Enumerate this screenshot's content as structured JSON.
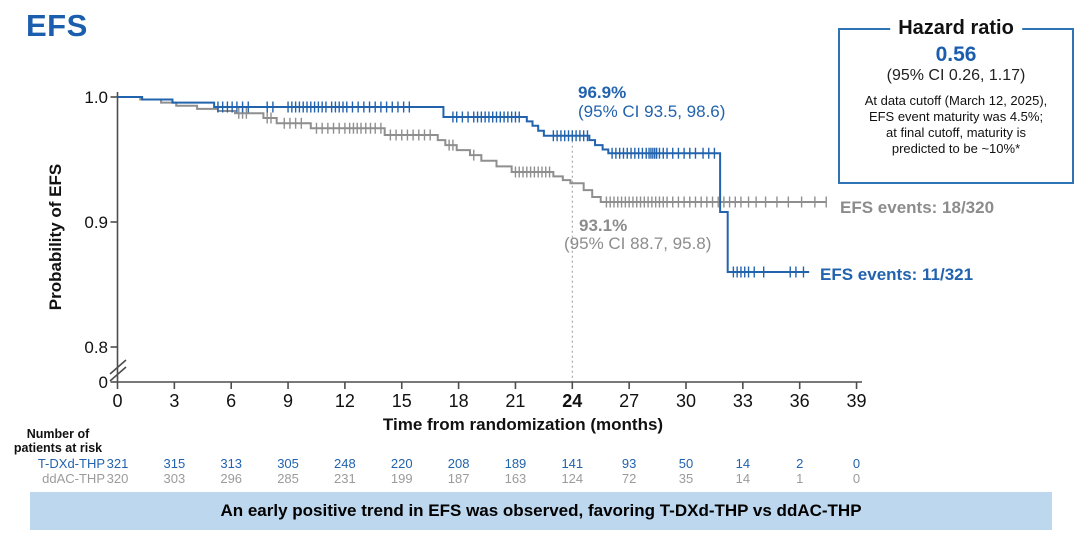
{
  "title": "EFS",
  "colors": {
    "brand_blue": "#1B5EAD",
    "curve_blue": "#2263AE",
    "curve_gray": "#8F8F8F",
    "risk_gray": "#9B9B9B",
    "banner_bg": "#BDD7EE",
    "box_border": "#2E74B5"
  },
  "hazard_box": {
    "title": "Hazard ratio",
    "value": "0.56",
    "ci": "(95% CI 0.26, 1.17)",
    "note_lines": [
      "At data cutoff (March 12, 2025),",
      "EFS event maturity was 4.5%;",
      "at final cutoff, maturity is",
      "predicted to be ~10%*"
    ]
  },
  "banner": {
    "text": "An early positive trend in EFS was observed, favoring T-DXd-THP vs ddAC-THP"
  },
  "chart_data": {
    "type": "line",
    "subtype": "kaplan-meier-step",
    "title": "EFS",
    "xlabel": "Time from randomization (months)",
    "ylabel": "Probability of EFS",
    "x_ticks": [
      0,
      3,
      6,
      9,
      12,
      15,
      18,
      21,
      24,
      27,
      30,
      33,
      36,
      39
    ],
    "emphasized_x_tick": 24,
    "y_ticks": [
      "1.0",
      "0.9",
      "0.8",
      "0"
    ],
    "ylim_visible": [
      0.8,
      1.0
    ],
    "axis_break": true,
    "reference_line_month": 24,
    "series": [
      {
        "name": "T-DXd-THP",
        "color": "#2263AE",
        "steps": [
          [
            0,
            1.0
          ],
          [
            1.3,
            0.998
          ],
          [
            2.9,
            0.9955
          ],
          [
            5.1,
            0.992
          ],
          [
            17.2,
            0.984
          ],
          [
            21.6,
            0.9805
          ],
          [
            21.9,
            0.977
          ],
          [
            22.2,
            0.973
          ],
          [
            22.5,
            0.969
          ],
          [
            24.9,
            0.9655
          ],
          [
            25.2,
            0.9615
          ],
          [
            25.6,
            0.958
          ],
          [
            25.9,
            0.955
          ],
          [
            31.8,
            0.908
          ],
          [
            32.2,
            0.86
          ],
          [
            36.5,
            0.86
          ]
        ],
        "censors": [
          [
            5.3,
            0.992
          ],
          [
            5.55,
            0.992
          ],
          [
            5.8,
            0.992
          ],
          [
            6.05,
            0.992
          ],
          [
            6.3,
            0.992
          ],
          [
            6.6,
            0.992
          ],
          [
            6.9,
            0.992
          ],
          [
            7.9,
            0.992
          ],
          [
            8.2,
            0.992
          ],
          [
            9.0,
            0.992
          ],
          [
            9.2,
            0.992
          ],
          [
            9.4,
            0.992
          ],
          [
            9.6,
            0.992
          ],
          [
            9.8,
            0.992
          ],
          [
            10.0,
            0.992
          ],
          [
            10.2,
            0.992
          ],
          [
            10.4,
            0.992
          ],
          [
            10.6,
            0.992
          ],
          [
            10.8,
            0.992
          ],
          [
            11.0,
            0.992
          ],
          [
            11.3,
            0.992
          ],
          [
            11.5,
            0.992
          ],
          [
            11.7,
            0.992
          ],
          [
            11.9,
            0.992
          ],
          [
            12.1,
            0.992
          ],
          [
            12.4,
            0.992
          ],
          [
            12.7,
            0.992
          ],
          [
            13.0,
            0.992
          ],
          [
            13.3,
            0.992
          ],
          [
            13.6,
            0.992
          ],
          [
            13.9,
            0.992
          ],
          [
            14.2,
            0.992
          ],
          [
            14.5,
            0.992
          ],
          [
            14.8,
            0.992
          ],
          [
            15.1,
            0.992
          ],
          [
            15.4,
            0.992
          ],
          [
            17.7,
            0.984
          ],
          [
            17.9,
            0.984
          ],
          [
            18.2,
            0.984
          ],
          [
            18.5,
            0.984
          ],
          [
            18.8,
            0.984
          ],
          [
            19.0,
            0.984
          ],
          [
            19.2,
            0.984
          ],
          [
            19.4,
            0.984
          ],
          [
            19.6,
            0.984
          ],
          [
            19.8,
            0.984
          ],
          [
            20.0,
            0.984
          ],
          [
            20.2,
            0.984
          ],
          [
            20.4,
            0.984
          ],
          [
            20.6,
            0.984
          ],
          [
            20.8,
            0.984
          ],
          [
            21.0,
            0.984
          ],
          [
            21.2,
            0.984
          ],
          [
            23.0,
            0.969
          ],
          [
            23.2,
            0.969
          ],
          [
            23.4,
            0.969
          ],
          [
            23.6,
            0.969
          ],
          [
            23.8,
            0.969
          ],
          [
            24.0,
            0.969
          ],
          [
            24.2,
            0.969
          ],
          [
            24.4,
            0.969
          ],
          [
            24.6,
            0.969
          ],
          [
            24.8,
            0.969
          ],
          [
            26.1,
            0.955
          ],
          [
            26.3,
            0.955
          ],
          [
            26.5,
            0.955
          ],
          [
            26.7,
            0.955
          ],
          [
            26.9,
            0.955
          ],
          [
            27.1,
            0.955
          ],
          [
            27.3,
            0.955
          ],
          [
            27.5,
            0.955
          ],
          [
            27.7,
            0.955
          ],
          [
            27.9,
            0.955
          ],
          [
            28.05,
            0.955
          ],
          [
            28.15,
            0.955
          ],
          [
            28.25,
            0.955
          ],
          [
            28.35,
            0.955
          ],
          [
            28.45,
            0.955
          ],
          [
            28.6,
            0.955
          ],
          [
            28.8,
            0.955
          ],
          [
            29.0,
            0.955
          ],
          [
            29.3,
            0.955
          ],
          [
            29.6,
            0.955
          ],
          [
            29.9,
            0.955
          ],
          [
            30.2,
            0.955
          ],
          [
            30.5,
            0.955
          ],
          [
            30.9,
            0.955
          ],
          [
            31.2,
            0.955
          ],
          [
            31.5,
            0.955
          ],
          [
            32.5,
            0.86
          ],
          [
            32.7,
            0.86
          ],
          [
            32.9,
            0.86
          ],
          [
            33.1,
            0.86
          ],
          [
            33.3,
            0.86
          ],
          [
            33.6,
            0.86
          ],
          [
            34.1,
            0.86
          ],
          [
            35.5,
            0.86
          ],
          [
            35.8,
            0.86
          ],
          [
            36.2,
            0.86
          ]
        ],
        "landmark": {
          "month": 24,
          "value_pct": "96.9%",
          "ci": "(95% CI 93.5, 98.6)"
        },
        "events_label": "EFS events: 11/321"
      },
      {
        "name": "ddAC-THP",
        "color": "#8F8F8F",
        "steps": [
          [
            0,
            1.0
          ],
          [
            1.2,
            0.998
          ],
          [
            2.3,
            0.9955
          ],
          [
            3.1,
            0.993
          ],
          [
            4.2,
            0.9905
          ],
          [
            5.3,
            0.9888
          ],
          [
            6.2,
            0.987
          ],
          [
            7.7,
            0.9832
          ],
          [
            8.4,
            0.979
          ],
          [
            10.2,
            0.975
          ],
          [
            14.1,
            0.9696
          ],
          [
            16.9,
            0.9655
          ],
          [
            17.3,
            0.9615
          ],
          [
            17.9,
            0.9575
          ],
          [
            18.6,
            0.9535
          ],
          [
            19.2,
            0.949
          ],
          [
            20.0,
            0.9445
          ],
          [
            20.8,
            0.94
          ],
          [
            23.0,
            0.9365
          ],
          [
            23.5,
            0.9335
          ],
          [
            23.9,
            0.931
          ],
          [
            24.6,
            0.9255
          ],
          [
            25.05,
            0.92
          ],
          [
            25.5,
            0.916
          ],
          [
            37.4,
            0.916
          ]
        ],
        "censors": [
          [
            6.4,
            0.987
          ],
          [
            6.6,
            0.987
          ],
          [
            6.8,
            0.987
          ],
          [
            7.9,
            0.9832
          ],
          [
            8.1,
            0.9832
          ],
          [
            8.8,
            0.979
          ],
          [
            9.1,
            0.979
          ],
          [
            9.4,
            0.979
          ],
          [
            9.7,
            0.979
          ],
          [
            10.5,
            0.975
          ],
          [
            10.8,
            0.975
          ],
          [
            11.1,
            0.975
          ],
          [
            11.4,
            0.975
          ],
          [
            11.7,
            0.975
          ],
          [
            12.0,
            0.975
          ],
          [
            12.25,
            0.975
          ],
          [
            12.45,
            0.975
          ],
          [
            12.65,
            0.975
          ],
          [
            12.85,
            0.975
          ],
          [
            13.1,
            0.975
          ],
          [
            13.35,
            0.975
          ],
          [
            13.6,
            0.975
          ],
          [
            13.9,
            0.975
          ],
          [
            14.4,
            0.9696
          ],
          [
            14.7,
            0.9696
          ],
          [
            15.0,
            0.9696
          ],
          [
            15.3,
            0.9696
          ],
          [
            15.6,
            0.9696
          ],
          [
            15.9,
            0.9696
          ],
          [
            16.2,
            0.9696
          ],
          [
            16.5,
            0.9696
          ],
          [
            17.5,
            0.9615
          ],
          [
            17.7,
            0.9615
          ],
          [
            18.8,
            0.9535
          ],
          [
            21.0,
            0.94
          ],
          [
            21.2,
            0.94
          ],
          [
            21.4,
            0.94
          ],
          [
            21.6,
            0.94
          ],
          [
            21.8,
            0.94
          ],
          [
            22.0,
            0.94
          ],
          [
            22.2,
            0.94
          ],
          [
            22.4,
            0.94
          ],
          [
            22.6,
            0.94
          ],
          [
            22.8,
            0.94
          ],
          [
            25.8,
            0.916
          ],
          [
            26.0,
            0.916
          ],
          [
            26.2,
            0.916
          ],
          [
            26.4,
            0.916
          ],
          [
            26.6,
            0.916
          ],
          [
            26.8,
            0.916
          ],
          [
            27.0,
            0.916
          ],
          [
            27.2,
            0.916
          ],
          [
            27.4,
            0.916
          ],
          [
            27.6,
            0.916
          ],
          [
            27.8,
            0.916
          ],
          [
            28.0,
            0.916
          ],
          [
            28.2,
            0.916
          ],
          [
            28.4,
            0.916
          ],
          [
            28.6,
            0.916
          ],
          [
            28.8,
            0.916
          ],
          [
            29.0,
            0.916
          ],
          [
            29.3,
            0.916
          ],
          [
            29.6,
            0.916
          ],
          [
            29.9,
            0.916
          ],
          [
            30.2,
            0.916
          ],
          [
            30.5,
            0.916
          ],
          [
            30.8,
            0.916
          ],
          [
            31.1,
            0.916
          ],
          [
            31.4,
            0.916
          ],
          [
            31.7,
            0.916
          ],
          [
            32.0,
            0.916
          ],
          [
            32.3,
            0.916
          ],
          [
            32.6,
            0.916
          ],
          [
            32.9,
            0.916
          ],
          [
            33.3,
            0.916
          ],
          [
            33.7,
            0.916
          ],
          [
            34.2,
            0.916
          ],
          [
            34.8,
            0.916
          ],
          [
            35.4,
            0.916
          ],
          [
            36.1,
            0.916
          ],
          [
            36.8,
            0.916
          ],
          [
            37.4,
            0.916
          ]
        ],
        "landmark": {
          "month": 24,
          "value_pct": "93.1%",
          "ci": "(95% CI 88.7, 95.8)"
        },
        "events_label": "EFS events: 18/320"
      }
    ],
    "at_risk": {
      "header": [
        "Number of",
        "patients at risk"
      ],
      "groups": [
        {
          "name": "T-DXd-THP",
          "color": "#2263AE",
          "counts": [
            321,
            315,
            313,
            305,
            248,
            220,
            208,
            189,
            141,
            93,
            50,
            14,
            2,
            0
          ]
        },
        {
          "name": "ddAC-THP",
          "color": "#9B9B9B",
          "counts": [
            320,
            303,
            296,
            285,
            231,
            199,
            187,
            163,
            124,
            72,
            35,
            14,
            1,
            0
          ]
        }
      ]
    }
  }
}
